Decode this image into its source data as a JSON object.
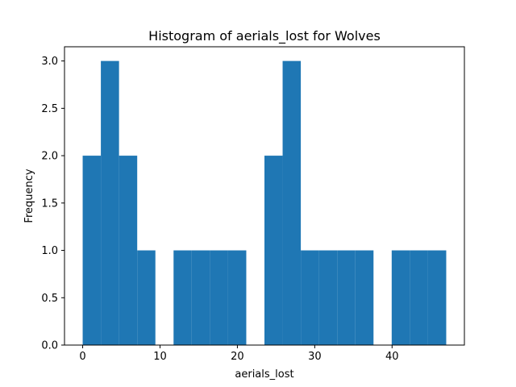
{
  "chart_data": {
    "type": "bar",
    "title": "Histogram of aerials_lost for Wolves",
    "xlabel": "aerials_lost",
    "ylabel": "Frequency",
    "xlim": [
      -2.35,
      49.35
    ],
    "ylim": [
      0,
      3.15
    ],
    "x_ticks": [
      0,
      10,
      20,
      30,
      40
    ],
    "y_ticks": [
      0.0,
      0.5,
      1.0,
      1.5,
      2.0,
      2.5,
      3.0
    ],
    "x_tick_labels": [
      "0",
      "10",
      "20",
      "30",
      "40"
    ],
    "y_tick_labels": [
      "0.0",
      "0.5",
      "1.0",
      "1.5",
      "2.0",
      "2.5",
      "3.0"
    ],
    "bin_edges": [
      0.0,
      2.35,
      4.7,
      7.05,
      9.4,
      11.75,
      14.1,
      16.45,
      18.8,
      21.15,
      23.5,
      25.85,
      28.2,
      30.55,
      32.9,
      35.25,
      37.6,
      39.95,
      42.3,
      44.65,
      47.0
    ],
    "values": [
      2,
      3,
      2,
      1,
      0,
      1,
      1,
      1,
      1,
      0,
      2,
      3,
      1,
      1,
      1,
      1,
      0,
      1,
      1,
      1
    ],
    "color": "#1f77b4",
    "grid": false,
    "legend": "none"
  }
}
